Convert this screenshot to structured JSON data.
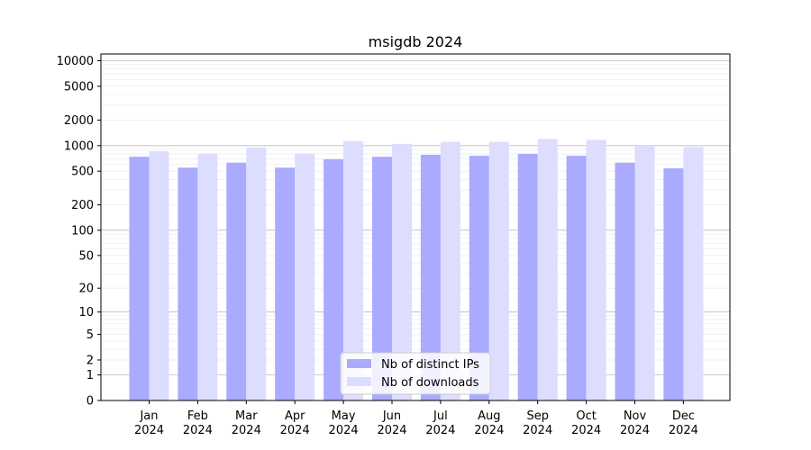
{
  "chart_data": {
    "type": "bar",
    "title": "msigdb 2024",
    "xlabel": "",
    "ylabel": "",
    "yscale": "symlog",
    "ylim": [
      0,
      12000
    ],
    "yticks": [
      0,
      1,
      2,
      5,
      10,
      20,
      50,
      100,
      200,
      500,
      1000,
      2000,
      5000,
      10000
    ],
    "ytick_labels": [
      "0",
      "1",
      "2",
      "5",
      "10",
      "20",
      "50",
      "100",
      "200",
      "500",
      "1000",
      "2000",
      "5000",
      "10000"
    ],
    "categories": [
      "Jan\n2024",
      "Feb\n2024",
      "Mar\n2024",
      "Apr\n2024",
      "May\n2024",
      "Jun\n2024",
      "Jul\n2024",
      "Aug\n2024",
      "Sep\n2024",
      "Oct\n2024",
      "Nov\n2024",
      "Dec\n2024"
    ],
    "series": [
      {
        "name": "Nb of distinct IPs",
        "color": "#aaaaff",
        "values": [
          740,
          550,
          630,
          550,
          690,
          740,
          780,
          760,
          800,
          760,
          630,
          540
        ]
      },
      {
        "name": "Nb of downloads",
        "color": "#ddddff",
        "values": [
          860,
          810,
          950,
          810,
          1130,
          1050,
          1110,
          1110,
          1200,
          1170,
          1000,
          960
        ]
      }
    ],
    "grid": true,
    "legend_position": "bottom-center"
  }
}
